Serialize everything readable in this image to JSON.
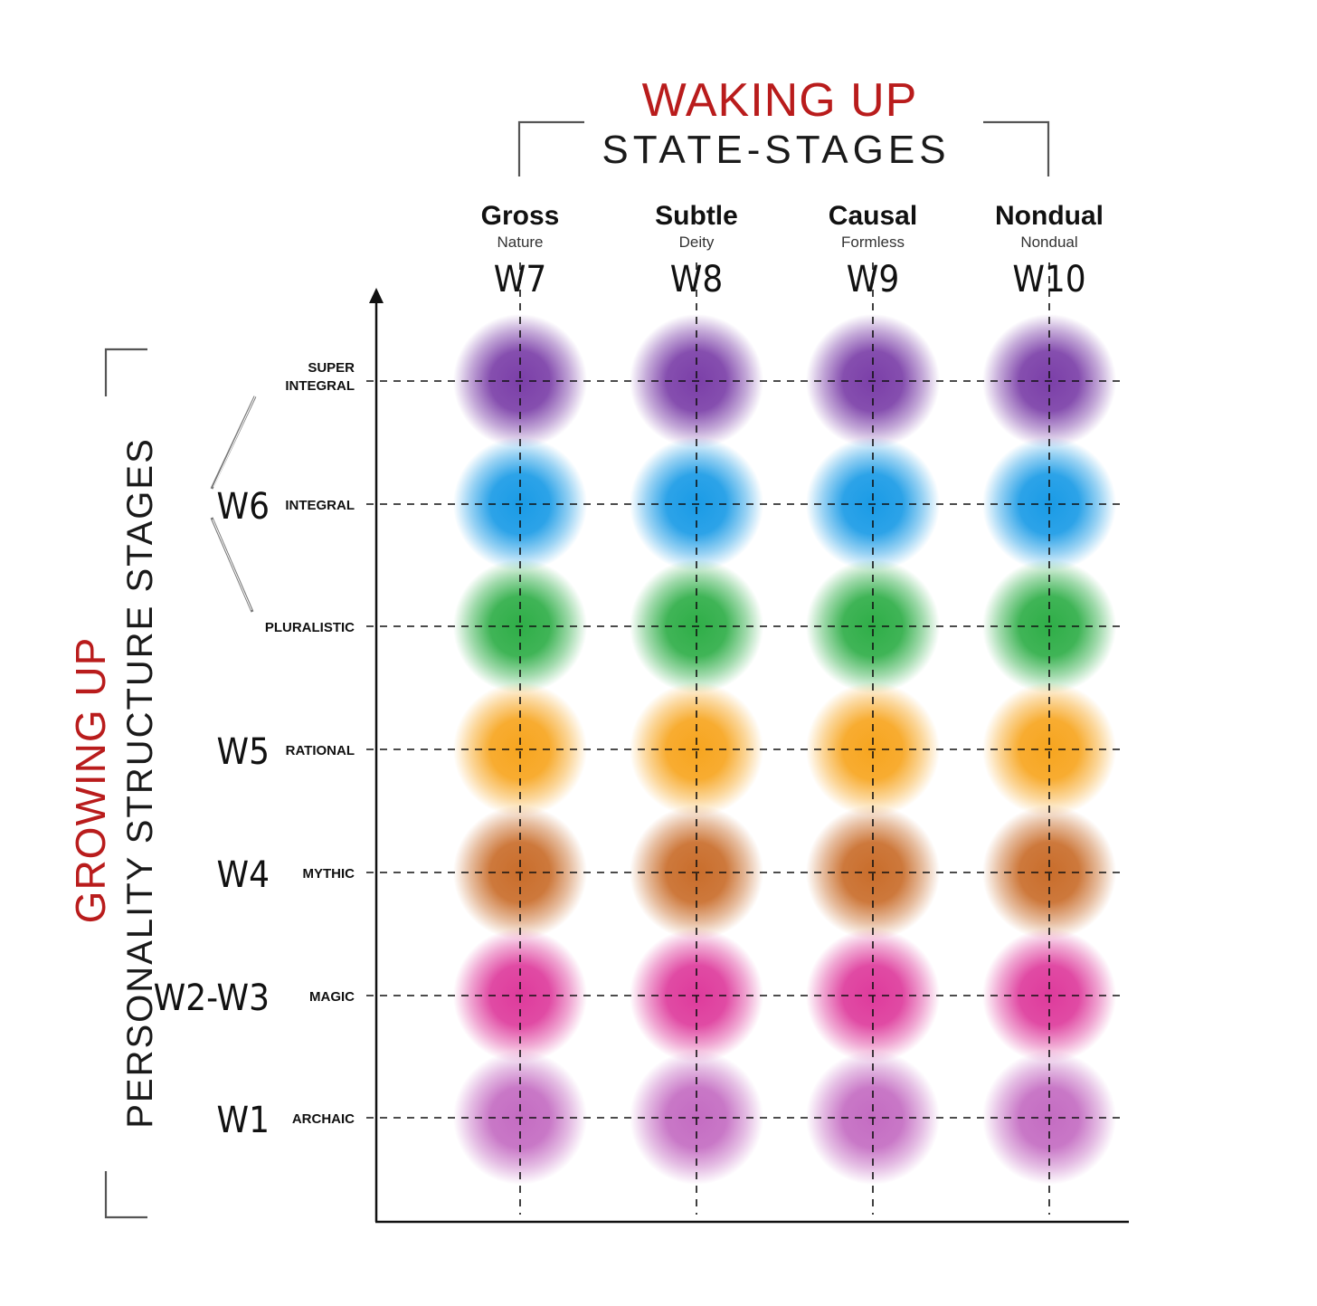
{
  "header": {
    "title": "WAKING UP",
    "subtitle": "STATE-STAGES"
  },
  "side": {
    "title": "GROWING UP",
    "subtitle": "PERSONALITY STRUCTURE STAGES"
  },
  "columns": [
    {
      "name": "Gross",
      "sub": "Nature",
      "code": "W7"
    },
    {
      "name": "Subtle",
      "sub": "Deity",
      "code": "W8"
    },
    {
      "name": "Causal",
      "sub": "Formless",
      "code": "W9"
    },
    {
      "name": "Nondual",
      "sub": "Nondual",
      "code": "W10"
    }
  ],
  "rows": [
    {
      "label_lines": [
        "SUPER",
        "INTEGRAL"
      ],
      "code": "",
      "color": "#7b3fa8"
    },
    {
      "label_lines": [
        "INTEGRAL"
      ],
      "code": "W6",
      "color": "#1a9be6"
    },
    {
      "label_lines": [
        "PLURALISTIC"
      ],
      "code": "",
      "color": "#2fae48"
    },
    {
      "label_lines": [
        "RATIONAL"
      ],
      "code": "W5",
      "color": "#f7a51f"
    },
    {
      "label_lines": [
        "MYTHIC"
      ],
      "code": "W4",
      "color": "#c96d2b"
    },
    {
      "label_lines": [
        "MAGIC"
      ],
      "code": "W2-W3",
      "color": "#de3b9c"
    },
    {
      "label_lines": [
        "ARCHAIC"
      ],
      "code": "W1",
      "color": "#c46cc2"
    }
  ],
  "colors": {
    "accent_red": "#b91c1c",
    "ink": "#111111",
    "bracket": "#666666"
  }
}
